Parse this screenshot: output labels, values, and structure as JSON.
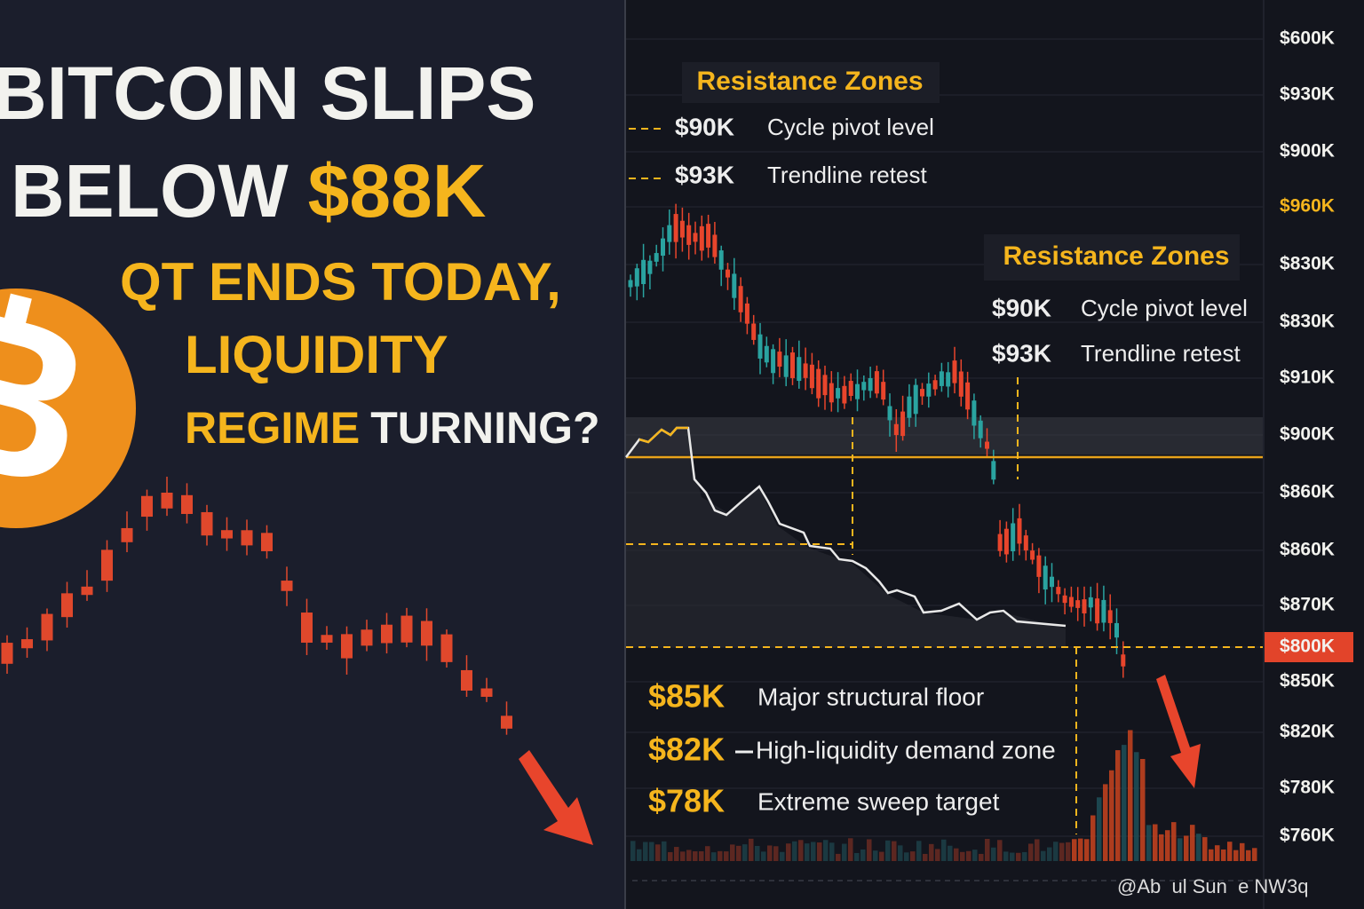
{
  "headline": {
    "line1": "BITCOIN SLIPS",
    "line2_a": "BELOW",
    "line2_b": "$88K"
  },
  "subhead": {
    "line1": "QT ENDS TODAY,",
    "line2": "LIQUIDITY",
    "line3_a": "REGIME",
    "line3_b": "TURNING?"
  },
  "resistance_top": {
    "title": "Resistance Zones",
    "levels": [
      {
        "price": "$90K",
        "label": "Cycle pivot level"
      },
      {
        "price": "$93K",
        "label": "Trendline retest"
      }
    ]
  },
  "resistance_mid": {
    "title": "Resistance Zones",
    "levels": [
      {
        "price": "$90K",
        "label": "Cycle pivot level"
      },
      {
        "price": "$93K",
        "label": "Trendline retest"
      }
    ]
  },
  "supports": [
    {
      "price": "$85K",
      "label": "Major structural floor"
    },
    {
      "price": "$82K",
      "label": "High-liquidity demand zone"
    },
    {
      "price": "$78K",
      "label": "Extreme sweep target"
    }
  ],
  "price_axis": [
    "$600K",
    "$930K",
    "$900K",
    "$960K",
    "$830K",
    "$830K",
    "$910K",
    "$900K",
    "$860K",
    "$860K",
    "$870K",
    "$800K",
    "$850K",
    "$820K",
    "$780K",
    "$760K"
  ],
  "watermark": "@Ab  ul Sun  e NW3q"
}
